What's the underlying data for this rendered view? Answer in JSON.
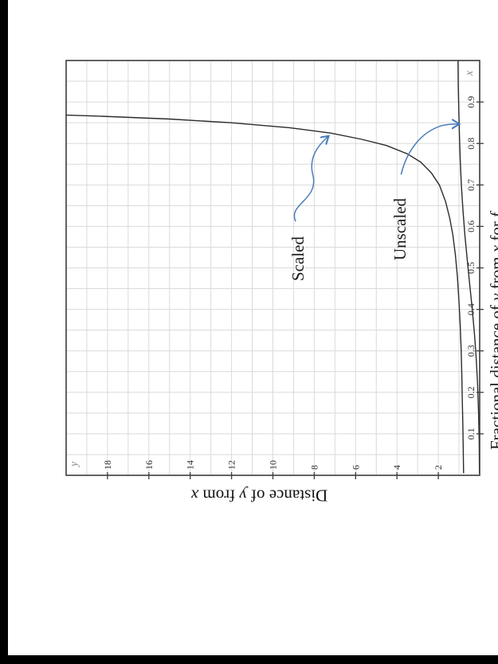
{
  "figure": {
    "corner_x_label": "x",
    "corner_y_label": "y",
    "ylabel": {
      "p1": "Distance of ",
      "y": "y",
      "p2": " from ",
      "x": "x"
    },
    "caption": {
      "p1": "Fractional distance of ",
      "y": "y",
      "p2": " from ",
      "x": "x",
      "p3": " for ",
      "f": "f"
    },
    "annotation_scaled": "Scaled",
    "annotation_unscaled": "Unscaled",
    "accent_arrow_color": "#4a7dbb",
    "curve_color": "#2b2b2b",
    "grid_color": "#dadada",
    "spine_color": "#3c3c3c"
  },
  "chart_data": {
    "type": "line",
    "title": "",
    "xlabel": "x",
    "ylabel": "Distance of y from x",
    "xlim": [
      0,
      1
    ],
    "ylim": [
      0,
      20
    ],
    "grid": true,
    "grid_step_x": 0.05,
    "grid_step_y": 1,
    "xticks": [
      "0.1",
      "0.2",
      "0.3",
      "0.4",
      "0.5",
      "0.6",
      "0.7",
      "0.8",
      "0.9"
    ],
    "yticks": [
      "2",
      "4",
      "6",
      "8",
      "10",
      "12",
      "14",
      "16",
      "18"
    ],
    "legend_position": "inline-annotations",
    "series": [
      {
        "name": "Scaled",
        "points": [
          [
            0.005,
            0.78
          ],
          [
            0.06,
            0.795
          ],
          [
            0.12,
            0.815
          ],
          [
            0.18,
            0.84
          ],
          [
            0.24,
            0.865
          ],
          [
            0.3,
            0.895
          ],
          [
            0.36,
            0.94
          ],
          [
            0.42,
            1.0
          ],
          [
            0.48,
            1.08
          ],
          [
            0.53,
            1.17
          ],
          [
            0.58,
            1.3
          ],
          [
            0.62,
            1.45
          ],
          [
            0.66,
            1.65
          ],
          [
            0.7,
            1.95
          ],
          [
            0.73,
            2.35
          ],
          [
            0.755,
            2.85
          ],
          [
            0.775,
            3.5
          ],
          [
            0.795,
            4.5
          ],
          [
            0.81,
            5.7
          ],
          [
            0.825,
            7.2
          ],
          [
            0.838,
            9.2
          ],
          [
            0.85,
            12.0
          ],
          [
            0.859,
            15.0
          ],
          [
            0.866,
            18.5
          ],
          [
            0.869,
            20.3
          ]
        ]
      },
      {
        "name": "Unscaled",
        "points": [
          [
            0.005,
            0.01
          ],
          [
            0.08,
            0.025
          ],
          [
            0.15,
            0.055
          ],
          [
            0.22,
            0.1
          ],
          [
            0.28,
            0.165
          ],
          [
            0.34,
            0.25
          ],
          [
            0.4,
            0.36
          ],
          [
            0.46,
            0.48
          ],
          [
            0.52,
            0.6
          ],
          [
            0.58,
            0.715
          ],
          [
            0.64,
            0.81
          ],
          [
            0.7,
            0.885
          ],
          [
            0.76,
            0.94
          ],
          [
            0.82,
            0.98
          ],
          [
            0.88,
            1.01
          ],
          [
            0.94,
            1.035
          ],
          [
            1.0,
            1.05
          ]
        ]
      }
    ],
    "annotations": [
      {
        "text": "Scaled",
        "arrow_from": [
          0.612,
          8.9
        ],
        "arrow_to": [
          0.818,
          7.3
        ]
      },
      {
        "text": "Unscaled",
        "arrow_from": [
          0.725,
          3.8
        ],
        "arrow_to": [
          0.847,
          0.98
        ]
      }
    ]
  }
}
